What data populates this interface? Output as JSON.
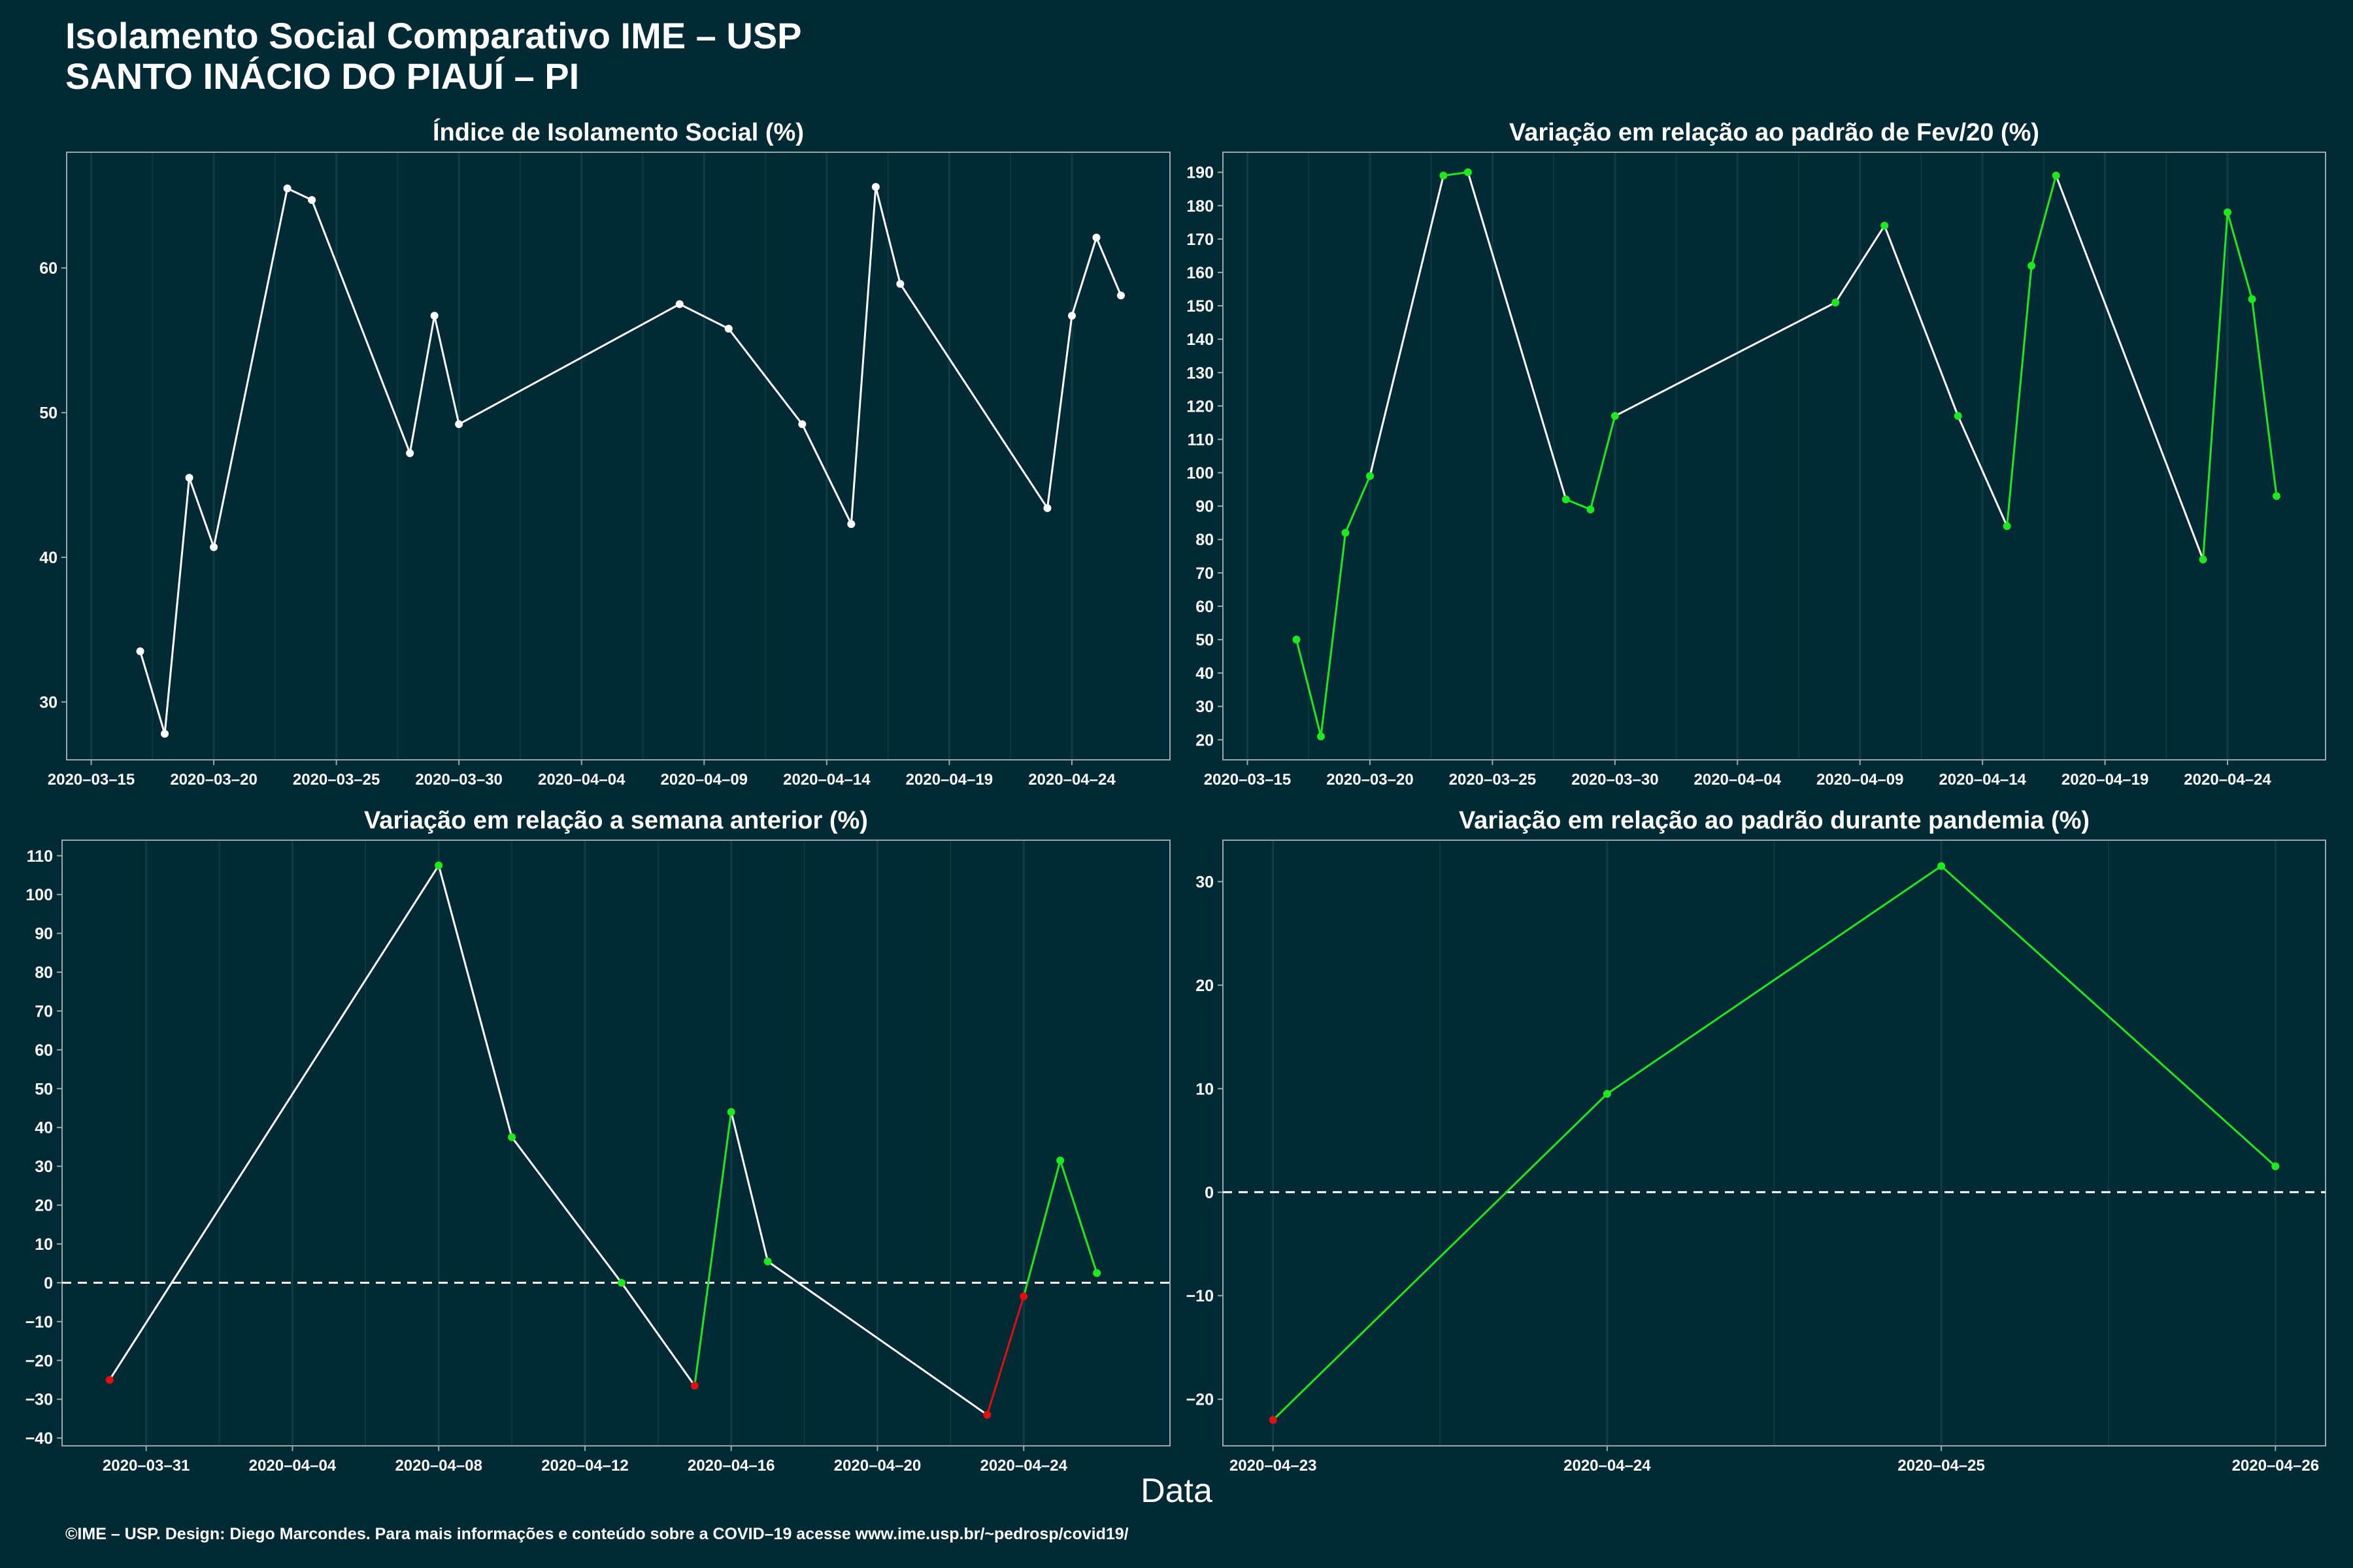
{
  "title_line1": "Isolamento Social Comparativo IME – USP",
  "title_line2": "SANTO INÁCIO DO PIAUÍ – PI",
  "x_title": "Data",
  "footer": "©IME – USP. Design: Diego Marcondes. Para mais informações e conteúdo sobre a COVID–19 acesse www.ime.usp.br/~pedrosp/covid19/",
  "colors": {
    "background": "#022a35",
    "line": "#ffffff",
    "positive": "#1ee81e",
    "negative": "#e01010",
    "axis": "#9aa8ad",
    "grid": "#0f3c48"
  },
  "chart_data": [
    {
      "id": "isolamento",
      "type": "line",
      "title": "Índice de Isolamento Social (%)",
      "xlim": [
        "2020-03-14",
        "2020-04-28"
      ],
      "x_ticks": [
        "2020-03-15",
        "2020-03-20",
        "2020-03-25",
        "2020-03-30",
        "2020-04-04",
        "2020-04-09",
        "2020-04-14",
        "2020-04-19",
        "2020-04-24"
      ],
      "ylim": [
        26,
        68
      ],
      "y_ticks": [
        30,
        40,
        50,
        60
      ],
      "zero_line": false,
      "points": [
        {
          "x": "2020-03-17",
          "y": 33.5
        },
        {
          "x": "2020-03-18",
          "y": 27.8
        },
        {
          "x": "2020-03-19",
          "y": 45.5
        },
        {
          "x": "2020-03-20",
          "y": 40.7
        },
        {
          "x": "2020-03-23",
          "y": 65.5
        },
        {
          "x": "2020-03-24",
          "y": 64.7
        },
        {
          "x": "2020-03-28",
          "y": 47.2
        },
        {
          "x": "2020-03-29",
          "y": 56.7
        },
        {
          "x": "2020-03-30",
          "y": 49.2
        },
        {
          "x": "2020-04-08",
          "y": 57.5
        },
        {
          "x": "2020-04-10",
          "y": 55.8
        },
        {
          "x": "2020-04-13",
          "y": 49.2
        },
        {
          "x": "2020-04-15",
          "y": 42.3
        },
        {
          "x": "2020-04-16",
          "y": 65.6
        },
        {
          "x": "2020-04-17",
          "y": 58.9
        },
        {
          "x": "2020-04-23",
          "y": 43.4
        },
        {
          "x": "2020-04-24",
          "y": 56.7
        },
        {
          "x": "2020-04-25",
          "y": 62.1
        },
        {
          "x": "2020-04-26",
          "y": 58.1
        }
      ]
    },
    {
      "id": "fev20",
      "type": "line",
      "title": "Variação em relação ao padrão de Fev/20 (%)",
      "xlim": [
        "2020-03-14",
        "2020-04-28"
      ],
      "x_ticks": [
        "2020-03-15",
        "2020-03-20",
        "2020-03-25",
        "2020-03-30",
        "2020-04-04",
        "2020-04-09",
        "2020-04-14",
        "2020-04-19",
        "2020-04-24"
      ],
      "ylim": [
        14,
        196
      ],
      "y_ticks": [
        20,
        30,
        40,
        50,
        60,
        70,
        80,
        90,
        100,
        110,
        120,
        130,
        140,
        150,
        160,
        170,
        180,
        190
      ],
      "zero_line": false,
      "points": [
        {
          "x": "2020-03-17",
          "y": 50
        },
        {
          "x": "2020-03-18",
          "y": 21
        },
        {
          "x": "2020-03-19",
          "y": 82
        },
        {
          "x": "2020-03-20",
          "y": 99
        },
        {
          "x": "2020-03-23",
          "y": 189
        },
        {
          "x": "2020-03-24",
          "y": 190
        },
        {
          "x": "2020-03-28",
          "y": 92
        },
        {
          "x": "2020-03-29",
          "y": 89
        },
        {
          "x": "2020-03-30",
          "y": 117
        },
        {
          "x": "2020-04-08",
          "y": 151
        },
        {
          "x": "2020-04-10",
          "y": 174
        },
        {
          "x": "2020-04-13",
          "y": 117
        },
        {
          "x": "2020-04-15",
          "y": 84
        },
        {
          "x": "2020-04-16",
          "y": 162
        },
        {
          "x": "2020-04-17",
          "y": 189
        },
        {
          "x": "2020-04-23",
          "y": 74
        },
        {
          "x": "2020-04-24",
          "y": 178
        },
        {
          "x": "2020-04-25",
          "y": 152
        },
        {
          "x": "2020-04-26",
          "y": 93
        }
      ],
      "segment_colors": [
        "positive",
        "positive",
        "positive",
        "line",
        "positive",
        "line",
        "positive",
        "positive",
        "line",
        "line",
        "line",
        "line",
        "positive",
        "positive",
        "line",
        "positive",
        "positive",
        "positive"
      ],
      "point_colors": [
        "positive",
        "positive",
        "positive",
        "positive",
        "positive",
        "positive",
        "positive",
        "positive",
        "positive",
        "positive",
        "positive",
        "positive",
        "positive",
        "positive",
        "positive",
        "positive",
        "positive",
        "positive",
        "positive"
      ]
    },
    {
      "id": "semana",
      "type": "line",
      "title": "Variação em relação a semana anterior (%)",
      "xlim": [
        "2020-03-28.7",
        "2020-04-28"
      ],
      "x_ticks": [
        "2020-03-31",
        "2020-04-04",
        "2020-04-08",
        "2020-04-12",
        "2020-04-16",
        "2020-04-20",
        "2020-04-24"
      ],
      "ylim": [
        -42,
        114
      ],
      "y_ticks": [
        -40,
        -30,
        -20,
        -10,
        0,
        10,
        20,
        30,
        40,
        50,
        60,
        70,
        80,
        90,
        100,
        110
      ],
      "zero_line": true,
      "points": [
        {
          "x": "2020-03-30",
          "y": -25
        },
        {
          "x": "2020-04-08",
          "y": 107.5
        },
        {
          "x": "2020-04-10",
          "y": 37.5
        },
        {
          "x": "2020-04-13",
          "y": 0
        },
        {
          "x": "2020-04-15",
          "y": -26.5
        },
        {
          "x": "2020-04-16",
          "y": 44
        },
        {
          "x": "2020-04-17",
          "y": 5.5
        },
        {
          "x": "2020-04-23",
          "y": -34
        },
        {
          "x": "2020-04-24",
          "y": -3.5
        },
        {
          "x": "2020-04-25",
          "y": 31.5
        },
        {
          "x": "2020-04-26",
          "y": 2.5
        }
      ],
      "segment_colors": [
        "line",
        "line",
        "line",
        "line",
        "positive",
        "line",
        "line",
        "negative",
        "positive",
        "positive"
      ],
      "point_colors": [
        "negative",
        "positive",
        "positive",
        "positive",
        "negative",
        "positive",
        "positive",
        "negative",
        "negative",
        "positive",
        "positive"
      ]
    },
    {
      "id": "pandemia",
      "type": "line",
      "title": "Variação em relação ao padrão durante pandemia (%)",
      "xlim": [
        "2020-04-22.85",
        "2020-04-26.15"
      ],
      "x_ticks": [
        "2020-04-23",
        "2020-04-24",
        "2020-04-25",
        "2020-04-26"
      ],
      "ylim": [
        -24.5,
        34
      ],
      "y_ticks": [
        -20,
        -10,
        0,
        10,
        20,
        30
      ],
      "zero_line": true,
      "points": [
        {
          "x": "2020-04-23",
          "y": -22
        },
        {
          "x": "2020-04-24",
          "y": 9.5
        },
        {
          "x": "2020-04-25",
          "y": 31.5
        },
        {
          "x": "2020-04-26",
          "y": 2.5
        }
      ],
      "segment_colors": [
        "positive",
        "positive",
        "positive"
      ],
      "point_colors": [
        "negative",
        "positive",
        "positive",
        "positive"
      ]
    }
  ]
}
